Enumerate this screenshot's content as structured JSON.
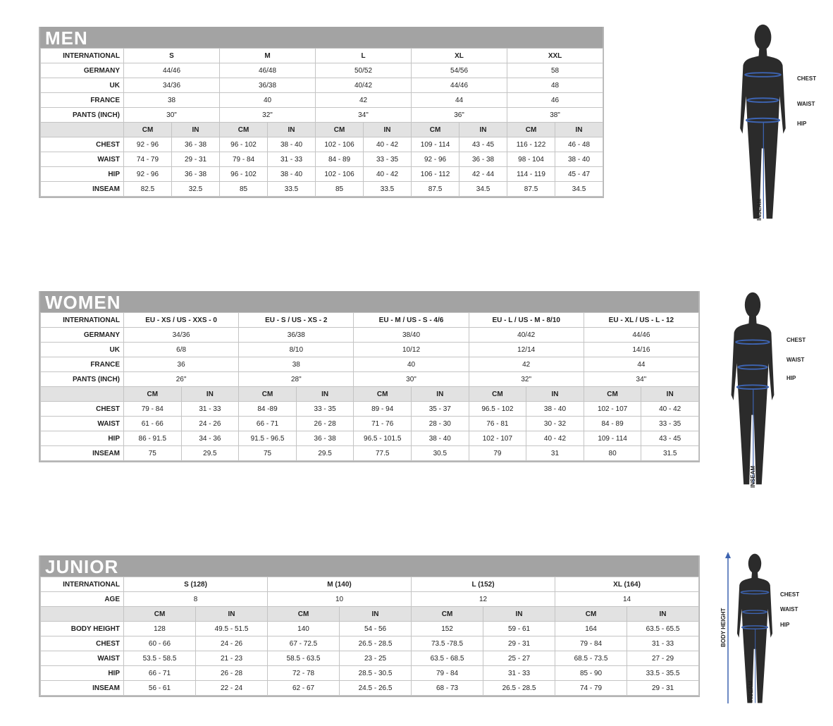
{
  "tables": [
    {
      "title": "MEN",
      "international": {
        "label": "INTERNATIONAL",
        "values": [
          "S",
          "M",
          "L",
          "XL",
          "XXL"
        ]
      },
      "span_rows": [
        {
          "label": "GERMANY",
          "values": [
            "44/46",
            "46/48",
            "50/52",
            "54/56",
            "58"
          ]
        },
        {
          "label": "UK",
          "values": [
            "34/36",
            "36/38",
            "40/42",
            "44/46",
            "48"
          ]
        },
        {
          "label": "FRANCE",
          "values": [
            "38",
            "40",
            "42",
            "44",
            "46"
          ]
        },
        {
          "label": "PANTS (INCH)",
          "values": [
            "30\"",
            "32\"",
            "34\"",
            "36\"",
            "38\""
          ]
        }
      ],
      "units": [
        "CM",
        "IN"
      ],
      "rows": [
        {
          "label": "CHEST",
          "values": [
            "92 - 96",
            "36 - 38",
            "96 - 102",
            "38 - 40",
            "102 - 106",
            "40 - 42",
            "109 - 114",
            "43 - 45",
            "116 - 122",
            "46 - 48"
          ]
        },
        {
          "label": "WAIST",
          "values": [
            "74 - 79",
            "29 - 31",
            "79 - 84",
            "31 - 33",
            "84 - 89",
            "33 - 35",
            "92 - 96",
            "36 - 38",
            "98 - 104",
            "38 - 40"
          ]
        },
        {
          "label": "HIP",
          "values": [
            "92 - 96",
            "36 - 38",
            "96 - 102",
            "38 - 40",
            "102 - 106",
            "40 - 42",
            "106 - 112",
            "42 - 44",
            "114 - 119",
            "45 - 47"
          ]
        },
        {
          "label": "INSEAM",
          "values": [
            "82.5",
            "32.5",
            "85",
            "33.5",
            "85",
            "33.5",
            "87.5",
            "34.5",
            "87.5",
            "34.5"
          ]
        }
      ]
    },
    {
      "title": "WOMEN",
      "international": {
        "label": "INTERNATIONAL",
        "values": [
          "EU - XS / US - XXS - 0",
          "EU - S / US - XS - 2",
          "EU - M / US - S - 4/6",
          "EU - L / US - M - 8/10",
          "EU - XL / US - L - 12"
        ]
      },
      "span_rows": [
        {
          "label": "GERMANY",
          "values": [
            "34/36",
            "36/38",
            "38/40",
            "40/42",
            "44/46"
          ]
        },
        {
          "label": "UK",
          "values": [
            "6/8",
            "8/10",
            "10/12",
            "12/14",
            "14/16"
          ]
        },
        {
          "label": "FRANCE",
          "values": [
            "36",
            "38",
            "40",
            "42",
            "44"
          ]
        },
        {
          "label": "PANTS (INCH)",
          "values": [
            "26\"",
            "28\"",
            "30\"",
            "32\"",
            "34\""
          ]
        }
      ],
      "units": [
        "CM",
        "IN"
      ],
      "rows": [
        {
          "label": "CHEST",
          "values": [
            "79 - 84",
            "31 - 33",
            "84 -89",
            "33 - 35",
            "89 - 94",
            "35 - 37",
            "96.5 - 102",
            "38 - 40",
            "102 - 107",
            "40 - 42"
          ]
        },
        {
          "label": "WAIST",
          "values": [
            "61 - 66",
            "24 - 26",
            "66 - 71",
            "26 - 28",
            "71 - 76",
            "28 - 30",
            "76 - 81",
            "30 - 32",
            "84 - 89",
            "33 - 35"
          ]
        },
        {
          "label": "HIP",
          "values": [
            "86 - 91.5",
            "34 - 36",
            "91.5 - 96.5",
            "36 - 38",
            "96.5 - 101.5",
            "38 - 40",
            "102 - 107",
            "40 - 42",
            "109 - 114",
            "43 - 45"
          ]
        },
        {
          "label": "INSEAM",
          "values": [
            "75",
            "29.5",
            "75",
            "29.5",
            "77.5",
            "30.5",
            "79",
            "31",
            "80",
            "31.5"
          ]
        }
      ]
    },
    {
      "title": "JUNIOR",
      "international": {
        "label": "INTERNATIONAL",
        "values": [
          "S (128)",
          "M (140)",
          "L (152)",
          "XL (164)"
        ]
      },
      "span_rows": [
        {
          "label": "AGE",
          "values": [
            "8",
            "10",
            "12",
            "14"
          ]
        }
      ],
      "units": [
        "CM",
        "IN"
      ],
      "rows": [
        {
          "label": "BODY HEIGHT",
          "values": [
            "128",
            "49.5 - 51.5",
            "140",
            "54 - 56",
            "152",
            "59 - 61",
            "164",
            "63.5 - 65.5"
          ]
        },
        {
          "label": "CHEST",
          "values": [
            "60 - 66",
            "24 - 26",
            "67 - 72.5",
            "26.5 - 28.5",
            "73.5 -78.5",
            "29 - 31",
            "79 - 84",
            "31 - 33"
          ]
        },
        {
          "label": "WAIST",
          "values": [
            "53.5 - 58.5",
            "21 - 23",
            "58.5 - 63.5",
            "23 - 25",
            "63.5 - 68.5",
            "25 - 27",
            "68.5 - 73.5",
            "27 - 29"
          ]
        },
        {
          "label": "HIP",
          "values": [
            "66 - 71",
            "26 - 28",
            "72 - 78",
            "28.5 - 30.5",
            "79 - 84",
            "31 - 33",
            "85 - 90",
            "33.5 - 35.5"
          ]
        },
        {
          "label": "INSEAM",
          "values": [
            "56 - 61",
            "22 - 24",
            "62 - 67",
            "24.5 - 26.5",
            "68 - 73",
            "26.5 - 28.5",
            "74 - 79",
            "29 - 31"
          ]
        }
      ]
    }
  ],
  "figures": [
    {
      "labels": [
        "CHEST",
        "WAIST",
        "HIP"
      ],
      "inseam": "INSEAM"
    },
    {
      "labels": [
        "CHEST",
        "WAIST",
        "HIP"
      ],
      "inseam": "INSEAM"
    },
    {
      "labels": [
        "CHEST",
        "WAIST",
        "HIP"
      ],
      "inseam": "INSEAM",
      "height": "BODY HEIGHT"
    }
  ]
}
